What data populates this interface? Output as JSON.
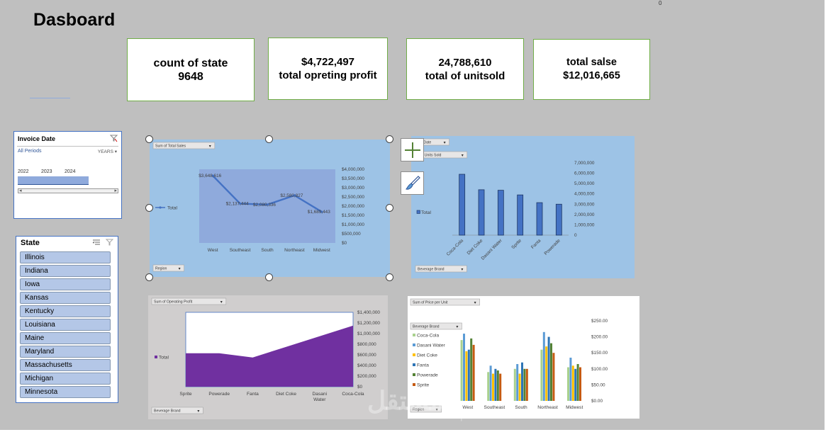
{
  "title": "Dasboard",
  "kpis": {
    "count_label": "count of state",
    "count_value": "9648",
    "profit_value": "$4,722,497",
    "profit_label": "total opreting profit",
    "units_value": "24,788,610",
    "units_label": "total of unitsold",
    "sales_label": "total salse",
    "sales_value": "$12,016,665"
  },
  "timeline": {
    "header": "Invoice Date",
    "all_periods": "All Periods",
    "level": "YEARS",
    "years": [
      "2022",
      "2023",
      "2024"
    ]
  },
  "state_slicer": {
    "header": "State",
    "items": [
      "Illinois",
      "Indiana",
      "Iowa",
      "Kansas",
      "Kentucky",
      "Louisiana",
      "Maine",
      "Maryland",
      "Massachusetts",
      "Michigan",
      "Minnesota"
    ]
  },
  "colors": {
    "sheet": "#bfbfbf",
    "kpi_border": "#70ad47",
    "chart_blue": "#9dc3e6",
    "plot_blue": "#8faadc",
    "line": "#4472c4",
    "bar": "#4472c4",
    "area": "#7030a0"
  },
  "watermark": {
    "text": "مستقل",
    "sub": "mostaql.com"
  },
  "chart_data": [
    {
      "type": "line",
      "field_button": "Sum of Total Sales",
      "axis_button": "Region",
      "legend": "Total",
      "categories": [
        "West",
        "Southeast",
        "South",
        "Northeast",
        "Midwest"
      ],
      "values": [
        3648616,
        2137444,
        2080336,
        2580827,
        1689443
      ],
      "data_labels": [
        "$3,648,616",
        "$2,137,444",
        "$2,080,336",
        "$2,580,827",
        "$1,689,443"
      ],
      "ylim": [
        0,
        4000000
      ],
      "ytick_labels": [
        "$4,000,000",
        "$3,500,000",
        "$3,000,000",
        "$2,500,000",
        "$2,000,000",
        "$1,500,000",
        "$1,000,000",
        "$500,000",
        "$0"
      ]
    },
    {
      "type": "bar",
      "field_buttons": [
        "e Date",
        "of Units Sold"
      ],
      "axis_button": "Beverage Brand",
      "legend": "Total",
      "categories": [
        "Coca-Cola",
        "Diet Coke",
        "Dasani Water",
        "Sprite",
        "Fanta",
        "Powerade"
      ],
      "values": [
        5900000,
        4400000,
        4350000,
        3900000,
        3150000,
        3000000
      ],
      "ylim": [
        0,
        7000000
      ],
      "ytick_labels": [
        "7,000,000",
        "6,000,000",
        "5,000,000",
        "4,000,000",
        "3,000,000",
        "2,000,000",
        "1,000,000",
        "0"
      ]
    },
    {
      "type": "area",
      "field_button": "Sum of Operating Profit",
      "axis_button": "Beverage Brand",
      "legend": "Total",
      "categories": [
        "Sprite",
        "Powerade",
        "Fanta",
        "Diet Coke",
        "Dasani Water",
        "Coca-Cola"
      ],
      "category_lines": [
        [
          "Sprite"
        ],
        [
          "Powerade"
        ],
        [
          "Fanta"
        ],
        [
          "Diet Coke"
        ],
        [
          "Dasani",
          "Water"
        ],
        [
          "Coca-Cola"
        ]
      ],
      "values": [
        630000,
        630000,
        550000,
        750000,
        950000,
        1150000
      ],
      "ylim": [
        0,
        1400000
      ],
      "ytick_labels": [
        "$1,400,000",
        "$1,200,000",
        "$1,000,000",
        "$800,000",
        "$600,000",
        "$400,000",
        "$200,000",
        "$0"
      ]
    },
    {
      "type": "bar",
      "field_button": "Sum of Price per Unit",
      "legend_button": "Beverage Brand",
      "axis_button": "Region",
      "categories": [
        "West",
        "Southeast",
        "South",
        "Northeast",
        "Midwest"
      ],
      "series": [
        {
          "name": "Coca-Cola",
          "color": "#a9d18e",
          "values": [
            190,
            90,
            100,
            160,
            105
          ]
        },
        {
          "name": "Dasani Water",
          "color": "#5b9bd5",
          "values": [
            210,
            110,
            115,
            215,
            135
          ]
        },
        {
          "name": "Diet Coke",
          "color": "#ffc000",
          "values": [
            155,
            85,
            85,
            170,
            110
          ]
        },
        {
          "name": "Fanta",
          "color": "#2e75b6",
          "values": [
            160,
            100,
            120,
            200,
            100
          ]
        },
        {
          "name": "Powerade",
          "color": "#548235",
          "values": [
            195,
            95,
            100,
            180,
            115
          ]
        },
        {
          "name": "Sprite",
          "color": "#c55a11",
          "values": [
            175,
            85,
            100,
            150,
            105
          ]
        }
      ],
      "ylim": [
        0,
        250
      ],
      "ytick_labels": [
        "$250.00",
        "$200.00",
        "$150.00",
        "$100.00",
        "$50.00",
        "$0.00"
      ]
    }
  ]
}
